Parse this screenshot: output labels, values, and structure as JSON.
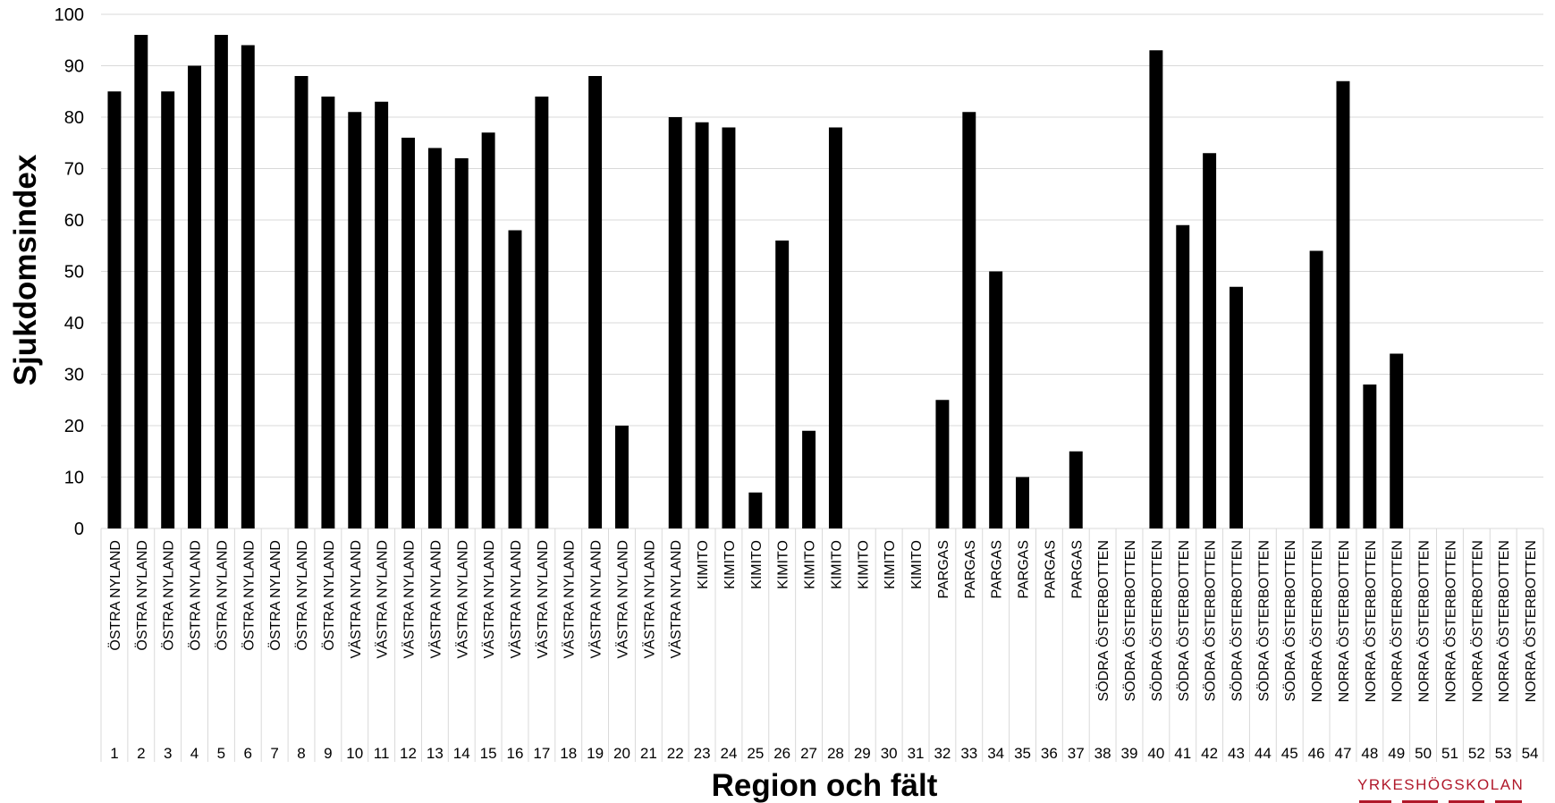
{
  "chart_data": {
    "type": "bar",
    "ylabel": "Sjukdomsindex",
    "xlabel": "Region och fält",
    "ylim": [
      0,
      100
    ],
    "yticks": [
      0,
      10,
      20,
      30,
      40,
      50,
      60,
      70,
      80,
      90,
      100
    ],
    "grid": true,
    "bar_color": "#000000",
    "categories": [
      {
        "num": "1",
        "region": "ÖSTRA NYLAND"
      },
      {
        "num": "2",
        "region": "ÖSTRA NYLAND"
      },
      {
        "num": "3",
        "region": "ÖSTRA NYLAND"
      },
      {
        "num": "4",
        "region": "ÖSTRA NYLAND"
      },
      {
        "num": "5",
        "region": "ÖSTRA NYLAND"
      },
      {
        "num": "6",
        "region": "ÖSTRA NYLAND"
      },
      {
        "num": "7",
        "region": "ÖSTRA NYLAND"
      },
      {
        "num": "8",
        "region": "ÖSTRA NYLAND"
      },
      {
        "num": "9",
        "region": "ÖSTRA NYLAND"
      },
      {
        "num": "10",
        "region": "VÄSTRA NYLAND"
      },
      {
        "num": "11",
        "region": "VÄSTRA NYLAND"
      },
      {
        "num": "12",
        "region": "VÄSTRA NYLAND"
      },
      {
        "num": "13",
        "region": "VÄSTRA NYLAND"
      },
      {
        "num": "14",
        "region": "VÄSTRA NYLAND"
      },
      {
        "num": "15",
        "region": "VÄSTRA NYLAND"
      },
      {
        "num": "16",
        "region": "VÄSTRA NYLAND"
      },
      {
        "num": "17",
        "region": "VÄSTRA NYLAND"
      },
      {
        "num": "18",
        "region": "VÄSTRA NYLAND"
      },
      {
        "num": "19",
        "region": "VÄSTRA NYLAND"
      },
      {
        "num": "20",
        "region": "VÄSTRA NYLAND"
      },
      {
        "num": "21",
        "region": "VÄSTRA NYLAND"
      },
      {
        "num": "22",
        "region": "VÄSTRA NYLAND"
      },
      {
        "num": "23",
        "region": "KIMITO"
      },
      {
        "num": "24",
        "region": "KIMITO"
      },
      {
        "num": "25",
        "region": "KIMITO"
      },
      {
        "num": "26",
        "region": "KIMITO"
      },
      {
        "num": "27",
        "region": "KIMITO"
      },
      {
        "num": "28",
        "region": "KIMITO"
      },
      {
        "num": "29",
        "region": "KIMITO"
      },
      {
        "num": "30",
        "region": "KIMITO"
      },
      {
        "num": "31",
        "region": "KIMITO"
      },
      {
        "num": "32",
        "region": "PARGAS"
      },
      {
        "num": "33",
        "region": "PARGAS"
      },
      {
        "num": "34",
        "region": "PARGAS"
      },
      {
        "num": "35",
        "region": "PARGAS"
      },
      {
        "num": "36",
        "region": "PARGAS"
      },
      {
        "num": "37",
        "region": "PARGAS"
      },
      {
        "num": "38",
        "region": "SÖDRA ÖSTERBOTTEN"
      },
      {
        "num": "39",
        "region": "SÖDRA ÖSTERBOTTEN"
      },
      {
        "num": "40",
        "region": "SÖDRA ÖSTERBOTTEN"
      },
      {
        "num": "41",
        "region": "SÖDRA ÖSTERBOTTEN"
      },
      {
        "num": "42",
        "region": "SÖDRA ÖSTERBOTTEN"
      },
      {
        "num": "43",
        "region": "SÖDRA ÖSTERBOTTEN"
      },
      {
        "num": "44",
        "region": "SÖDRA ÖSTERBOTTEN"
      },
      {
        "num": "45",
        "region": "SÖDRA ÖSTERBOTTEN"
      },
      {
        "num": "46",
        "region": "NORRA ÖSTERBOTTEN"
      },
      {
        "num": "47",
        "region": "NORRA ÖSTERBOTTEN"
      },
      {
        "num": "48",
        "region": "NORRA ÖSTERBOTTEN"
      },
      {
        "num": "49",
        "region": "NORRA ÖSTERBOTTEN"
      },
      {
        "num": "50",
        "region": "NORRA ÖSTERBOTTEN"
      },
      {
        "num": "51",
        "region": "NORRA ÖSTERBOTTEN"
      },
      {
        "num": "52",
        "region": "NORRA ÖSTERBOTTEN"
      },
      {
        "num": "53",
        "region": "NORRA ÖSTERBOTTEN"
      },
      {
        "num": "54",
        "region": "NORRA ÖSTERBOTTEN"
      }
    ],
    "values": [
      85,
      96,
      85,
      90,
      96,
      94,
      0,
      88,
      84,
      81,
      83,
      76,
      74,
      72,
      77,
      58,
      84,
      0,
      88,
      20,
      0,
      80,
      79,
      78,
      7,
      56,
      19,
      78,
      0,
      0,
      0,
      25,
      81,
      50,
      10,
      0,
      15,
      0,
      0,
      93,
      59,
      73,
      47,
      0,
      0,
      54,
      87,
      28,
      34,
      0,
      0,
      0,
      0,
      0
    ]
  },
  "logo": {
    "text": "YRKESHÖGSKOLAN",
    "color": "#b0182a"
  }
}
